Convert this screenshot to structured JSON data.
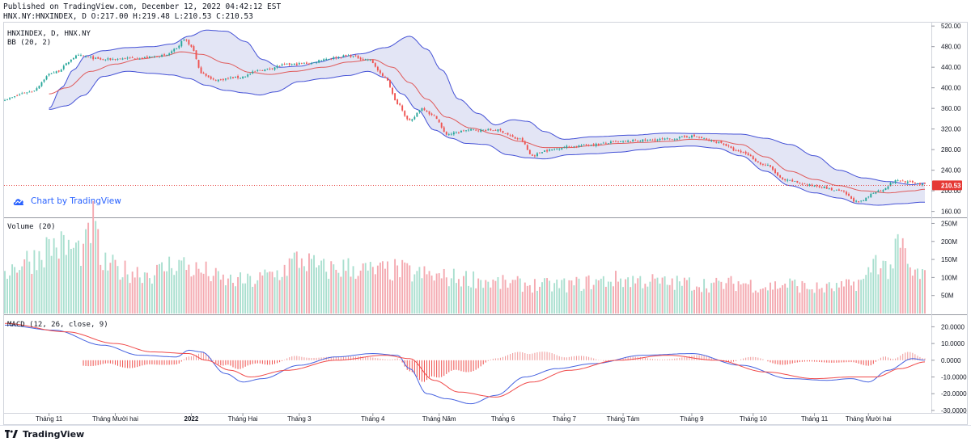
{
  "header": {
    "published": "Published on TradingView.com, December 12, 2022 04:42:12 EST",
    "ohlc": "HNX.NY:HNXINDEX, D O:217.00 H:219.48 L:210.53 C:210.53"
  },
  "watermark": {
    "link_text": "Chart by TradingView",
    "icon": "tradingview-cloud-icon"
  },
  "footer": {
    "logo_text": "TradingView",
    "icon": "tradingview-logo-icon"
  },
  "colors": {
    "up": "#26a69a",
    "down": "#ef5350",
    "bb_upper": "#4451d6",
    "bb_basis": "#e05a5a",
    "bb_fill": "#d9dcf2",
    "vol_up": "#a9dfcf",
    "vol_down": "#f4a9b0",
    "macd": "#4763e0",
    "signal": "#f04a4a",
    "last_price": "#e53935"
  },
  "chart_data": [
    {
      "type": "candlestick",
      "title": "HNXINDEX, D, HNX.NY",
      "indicator": "BB (20, 2)",
      "y_ticks": [
        "520.00",
        "480.00",
        "440.00",
        "400.00",
        "360.00",
        "320.00",
        "280.00",
        "240.00",
        "200.00",
        "160.00"
      ],
      "ylim": [
        150,
        525
      ],
      "last_price": "210.53",
      "x_ticks": [
        "Tháng 11",
        "Tháng Mười hai",
        "2022",
        "Tháng Hai",
        "Tháng 3",
        "Tháng 4",
        "Tháng Năm",
        "Tháng 6",
        "Tháng 7",
        "Tháng Tám",
        "Tháng 9",
        "Tháng 10",
        "Tháng 11",
        "Tháng Mười hai"
      ],
      "close_anchors": [
        [
          0,
          378
        ],
        [
          10,
          392
        ],
        [
          20,
          430
        ],
        [
          30,
          462
        ],
        [
          40,
          455
        ],
        [
          55,
          458
        ],
        [
          65,
          462
        ],
        [
          70,
          475
        ],
        [
          73,
          495
        ],
        [
          76,
          480
        ],
        [
          80,
          430
        ],
        [
          85,
          415
        ],
        [
          95,
          420
        ],
        [
          105,
          435
        ],
        [
          115,
          445
        ],
        [
          125,
          448
        ],
        [
          130,
          456
        ],
        [
          140,
          462
        ],
        [
          148,
          455
        ],
        [
          155,
          420
        ],
        [
          160,
          370
        ],
        [
          165,
          335
        ],
        [
          170,
          360
        ],
        [
          175,
          345
        ],
        [
          180,
          310
        ],
        [
          190,
          318
        ],
        [
          200,
          318
        ],
        [
          210,
          300
        ],
        [
          215,
          268
        ],
        [
          220,
          278
        ],
        [
          230,
          286
        ],
        [
          240,
          290
        ],
        [
          250,
          295
        ],
        [
          260,
          298
        ],
        [
          270,
          300
        ],
        [
          280,
          306
        ],
        [
          290,
          295
        ],
        [
          300,
          275
        ],
        [
          310,
          250
        ],
        [
          318,
          220
        ],
        [
          330,
          210
        ],
        [
          340,
          200
        ],
        [
          348,
          178
        ],
        [
          356,
          200
        ],
        [
          364,
          220
        ],
        [
          370,
          216
        ],
        [
          375,
          212
        ]
      ],
      "bb_upper_anchors": [
        [
          18,
          360
        ],
        [
          23,
          400
        ],
        [
          28,
          435
        ],
        [
          33,
          462
        ],
        [
          40,
          472
        ],
        [
          50,
          478
        ],
        [
          60,
          480
        ],
        [
          68,
          485
        ],
        [
          75,
          500
        ],
        [
          82,
          512
        ],
        [
          90,
          510
        ],
        [
          98,
          490
        ],
        [
          105,
          455
        ],
        [
          112,
          440
        ],
        [
          120,
          442
        ],
        [
          128,
          450
        ],
        [
          135,
          458
        ],
        [
          145,
          466
        ],
        [
          155,
          478
        ],
        [
          165,
          500
        ],
        [
          172,
          475
        ],
        [
          178,
          435
        ],
        [
          185,
          378
        ],
        [
          193,
          350
        ],
        [
          200,
          328
        ],
        [
          207,
          338
        ],
        [
          213,
          335
        ],
        [
          220,
          315
        ],
        [
          228,
          300
        ],
        [
          240,
          305
        ],
        [
          255,
          308
        ],
        [
          270,
          312
        ],
        [
          285,
          311
        ],
        [
          300,
          310
        ],
        [
          310,
          302
        ],
        [
          320,
          290
        ],
        [
          330,
          268
        ],
        [
          340,
          240
        ],
        [
          350,
          225
        ],
        [
          360,
          218
        ],
        [
          370,
          212
        ],
        [
          375,
          215
        ]
      ],
      "bb_lower_anchors": [
        [
          18,
          358
        ],
        [
          25,
          365
        ],
        [
          32,
          385
        ],
        [
          40,
          422
        ],
        [
          50,
          432
        ],
        [
          60,
          428
        ],
        [
          68,
          425
        ],
        [
          75,
          418
        ],
        [
          82,
          405
        ],
        [
          90,
          395
        ],
        [
          98,
          390
        ],
        [
          104,
          386
        ],
        [
          110,
          392
        ],
        [
          120,
          412
        ],
        [
          130,
          418
        ],
        [
          140,
          424
        ],
        [
          148,
          432
        ],
        [
          155,
          420
        ],
        [
          162,
          388
        ],
        [
          168,
          358
        ],
        [
          175,
          318
        ],
        [
          182,
          302
        ],
        [
          188,
          292
        ],
        [
          196,
          290
        ],
        [
          205,
          270
        ],
        [
          213,
          264
        ],
        [
          220,
          262
        ],
        [
          230,
          270
        ],
        [
          240,
          272
        ],
        [
          250,
          275
        ],
        [
          260,
          280
        ],
        [
          270,
          285
        ],
        [
          280,
          287
        ],
        [
          290,
          283
        ],
        [
          300,
          268
        ],
        [
          310,
          238
        ],
        [
          320,
          210
        ],
        [
          330,
          196
        ],
        [
          340,
          186
        ],
        [
          348,
          175
        ],
        [
          356,
          172
        ],
        [
          365,
          175
        ],
        [
          375,
          178
        ]
      ],
      "bb_basis_anchors": [
        [
          18,
          388
        ],
        [
          25,
          400
        ],
        [
          35,
          432
        ],
        [
          45,
          446
        ],
        [
          55,
          456
        ],
        [
          65,
          462
        ],
        [
          72,
          470
        ],
        [
          80,
          465
        ],
        [
          90,
          448
        ],
        [
          100,
          430
        ],
        [
          108,
          426
        ],
        [
          118,
          432
        ],
        [
          130,
          440
        ],
        [
          140,
          450
        ],
        [
          150,
          455
        ],
        [
          158,
          440
        ],
        [
          165,
          410
        ],
        [
          172,
          378
        ],
        [
          180,
          343
        ],
        [
          190,
          322
        ],
        [
          200,
          310
        ],
        [
          210,
          296
        ],
        [
          220,
          284
        ],
        [
          230,
          284
        ],
        [
          240,
          288
        ],
        [
          250,
          292
        ],
        [
          260,
          294
        ],
        [
          270,
          296
        ],
        [
          280,
          300
        ],
        [
          290,
          298
        ],
        [
          300,
          290
        ],
        [
          310,
          266
        ],
        [
          320,
          238
        ],
        [
          330,
          222
        ],
        [
          340,
          210
        ],
        [
          350,
          200
        ],
        [
          360,
          196
        ],
        [
          370,
          200
        ],
        [
          375,
          203
        ]
      ]
    },
    {
      "type": "bar",
      "title": "Volume (20)",
      "y_ticks": [
        "250M",
        "200M",
        "150M",
        "100M",
        "50M"
      ],
      "ylim": [
        0,
        260
      ],
      "volume_anchors": [
        [
          0,
          120
        ],
        [
          10,
          150
        ],
        [
          20,
          190
        ],
        [
          32,
          175
        ],
        [
          36,
          250
        ],
        [
          40,
          135
        ],
        [
          50,
          118
        ],
        [
          60,
          112
        ],
        [
          70,
          140
        ],
        [
          80,
          118
        ],
        [
          90,
          92
        ],
        [
          100,
          90
        ],
        [
          110,
          110
        ],
        [
          120,
          150
        ],
        [
          130,
          123
        ],
        [
          140,
          128
        ],
        [
          150,
          118
        ],
        [
          160,
          120
        ],
        [
          170,
          108
        ],
        [
          180,
          100
        ],
        [
          190,
          98
        ],
        [
          200,
          85
        ],
        [
          210,
          82
        ],
        [
          220,
          78
        ],
        [
          230,
          80
        ],
        [
          240,
          88
        ],
        [
          250,
          95
        ],
        [
          260,
          92
        ],
        [
          270,
          85
        ],
        [
          280,
          84
        ],
        [
          290,
          80
        ],
        [
          300,
          85
        ],
        [
          310,
          75
        ],
        [
          320,
          82
        ],
        [
          330,
          70
        ],
        [
          340,
          72
        ],
        [
          350,
          90
        ],
        [
          355,
          150
        ],
        [
          360,
          125
        ],
        [
          365,
          185
        ],
        [
          370,
          110
        ],
        [
          375,
          108
        ]
      ]
    },
    {
      "type": "line",
      "title": "MACD (12, 26, close, 9)",
      "y_ticks": [
        "20.0000",
        "10.0000",
        "0.0000",
        "-10.0000",
        "-20.0000",
        "-30.0000"
      ],
      "ylim": [
        -31,
        26
      ],
      "macd_anchors": [
        [
          0,
          21
        ],
        [
          20,
          18
        ],
        [
          40,
          9
        ],
        [
          55,
          3
        ],
        [
          70,
          2
        ],
        [
          75,
          6
        ],
        [
          80,
          5
        ],
        [
          90,
          -8
        ],
        [
          97,
          -13
        ],
        [
          105,
          -11
        ],
        [
          120,
          -3
        ],
        [
          135,
          2
        ],
        [
          150,
          4
        ],
        [
          160,
          3
        ],
        [
          165,
          -5
        ],
        [
          172,
          -20
        ],
        [
          180,
          -23
        ],
        [
          190,
          -26
        ],
        [
          200,
          -21
        ],
        [
          212,
          -10
        ],
        [
          225,
          -5
        ],
        [
          240,
          -2
        ],
        [
          260,
          3
        ],
        [
          280,
          4
        ],
        [
          300,
          -3
        ],
        [
          320,
          -11
        ],
        [
          335,
          -12
        ],
        [
          345,
          -11
        ],
        [
          352,
          -13
        ],
        [
          360,
          -6
        ],
        [
          370,
          1
        ],
        [
          375,
          0
        ]
      ],
      "signal_anchors": [
        [
          0,
          22
        ],
        [
          25,
          17
        ],
        [
          45,
          10
        ],
        [
          60,
          5
        ],
        [
          75,
          4
        ],
        [
          82,
          0
        ],
        [
          92,
          -6
        ],
        [
          100,
          -10
        ],
        [
          115,
          -6
        ],
        [
          135,
          0
        ],
        [
          155,
          3
        ],
        [
          165,
          1
        ],
        [
          175,
          -12
        ],
        [
          185,
          -19
        ],
        [
          200,
          -22
        ],
        [
          215,
          -13
        ],
        [
          230,
          -6
        ],
        [
          250,
          0
        ],
        [
          270,
          3
        ],
        [
          290,
          0
        ],
        [
          310,
          -7
        ],
        [
          330,
          -11
        ],
        [
          345,
          -10
        ],
        [
          355,
          -10
        ],
        [
          365,
          -5
        ],
        [
          375,
          -1
        ]
      ]
    }
  ]
}
